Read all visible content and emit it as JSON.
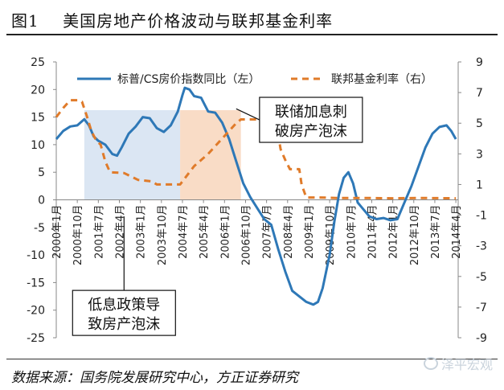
{
  "header": {
    "title": "图1    美国房地产价格波动与联邦基金利率"
  },
  "footer": {
    "source": "数据来源：国务院发展研究中心，方正证券研究",
    "watermark": "泽平宏观"
  },
  "colors": {
    "cs_index": "#2e78b7",
    "fed_rate": "#e07b2a",
    "shade_low_rate": "#dbe6f3",
    "shade_hike": "#f9dcc6"
  },
  "chart_data": {
    "type": "line",
    "x_tick_labels": [
      "2000年1月",
      "2000年10月",
      "2001年7月",
      "2002年4月",
      "2003年1月",
      "2003年10月",
      "2004年7月",
      "2005年4月",
      "2006年1月",
      "2006年10月",
      "2007年7月",
      "2008年4月",
      "2009年1月",
      "2009年10月",
      "2010年7月",
      "2011年4月",
      "2012年1月",
      "2012年10月",
      "2013年7月",
      "2014年4月"
    ],
    "y_left": {
      "ticks": [
        25,
        20,
        15,
        10,
        5,
        0,
        -5,
        -10,
        -15,
        -20,
        -25
      ],
      "lim": [
        -25,
        25
      ]
    },
    "y_right": {
      "ticks": [
        9,
        7,
        5,
        3,
        1,
        -1,
        -3,
        -5,
        -7,
        -9
      ],
      "lim": [
        -9,
        9
      ]
    },
    "shaded_regions": [
      {
        "x_start": "2001-01",
        "x_end": "2004-06",
        "color_key": "shade_low_rate"
      },
      {
        "x_start": "2004-06",
        "x_end": "2006-08",
        "color_key": "shade_hike"
      }
    ],
    "legend": {
      "placement": "top"
    },
    "annotations": [
      {
        "text": "联储加息刺\n破房产泡沫",
        "x": "2009-02",
        "y_left": 14.5,
        "arrow_to": {
          "x": "2006-06",
          "y_left": 16.5
        }
      },
      {
        "text": "低息政策导\n致房产泡沫",
        "x": "2002-06",
        "y_left": -20.5,
        "arrow_to": {
          "x": "2002-06",
          "y_left": -3
        }
      }
    ],
    "series": [
      {
        "name": "标普/CS房价指数同比（左）",
        "axis": "left",
        "style": "solid",
        "color_key": "cs_index",
        "points": [
          [
            "2000-01",
            11
          ],
          [
            "2000-04",
            12.5
          ],
          [
            "2000-07",
            13.3
          ],
          [
            "2000-10",
            13.5
          ],
          [
            "2001-01",
            14.6
          ],
          [
            "2001-03",
            13.5
          ],
          [
            "2001-05",
            11.5
          ],
          [
            "2001-07",
            10.7
          ],
          [
            "2001-10",
            10
          ],
          [
            "2002-01",
            8.3
          ],
          [
            "2002-03",
            8.0
          ],
          [
            "2002-05",
            9.5
          ],
          [
            "2002-08",
            12
          ],
          [
            "2002-11",
            13.3
          ],
          [
            "2003-02",
            15
          ],
          [
            "2003-05",
            14.8
          ],
          [
            "2003-08",
            13
          ],
          [
            "2003-11",
            12.3
          ],
          [
            "2004-02",
            13.5
          ],
          [
            "2004-05",
            16
          ],
          [
            "2004-07",
            19
          ],
          [
            "2004-08",
            20.3
          ],
          [
            "2004-10",
            20
          ],
          [
            "2004-12",
            18.8
          ],
          [
            "2005-03",
            18.5
          ],
          [
            "2005-06",
            16
          ],
          [
            "2005-09",
            15.8
          ],
          [
            "2005-12",
            14
          ],
          [
            "2006-03",
            11
          ],
          [
            "2006-06",
            7
          ],
          [
            "2006-09",
            3
          ],
          [
            "2006-12",
            0.5
          ],
          [
            "2007-03",
            -1.5
          ],
          [
            "2007-06",
            -3.5
          ],
          [
            "2007-09",
            -4.5
          ],
          [
            "2007-12",
            -9
          ],
          [
            "2008-03",
            -13
          ],
          [
            "2008-06",
            -16.5
          ],
          [
            "2008-09",
            -17.5
          ],
          [
            "2008-12",
            -18.5
          ],
          [
            "2009-03",
            -19
          ],
          [
            "2009-05",
            -18.5
          ],
          [
            "2009-07",
            -16
          ],
          [
            "2009-10",
            -10
          ],
          [
            "2009-12",
            -4
          ],
          [
            "2010-02",
            1
          ],
          [
            "2010-04",
            4
          ],
          [
            "2010-06",
            5
          ],
          [
            "2010-08",
            3
          ],
          [
            "2010-10",
            -0.5
          ],
          [
            "2010-12",
            -1.5
          ],
          [
            "2011-03",
            -3
          ],
          [
            "2011-06",
            -3.5
          ],
          [
            "2011-09",
            -3.3
          ],
          [
            "2011-12",
            -3.7
          ],
          [
            "2012-03",
            -3.5
          ],
          [
            "2012-06",
            -0.5
          ],
          [
            "2012-09",
            2.5
          ],
          [
            "2012-12",
            6
          ],
          [
            "2013-03",
            9.5
          ],
          [
            "2013-06",
            12
          ],
          [
            "2013-09",
            13.2
          ],
          [
            "2013-12",
            13.5
          ],
          [
            "2014-02",
            12.5
          ],
          [
            "2014-04",
            11
          ]
        ]
      },
      {
        "name": "联邦基金利率（右）",
        "axis": "right",
        "style": "dashed",
        "color_key": "fed_rate",
        "points": [
          [
            "2000-01",
            5.4
          ],
          [
            "2000-04",
            6
          ],
          [
            "2000-07",
            6.5
          ],
          [
            "2000-10",
            6.5
          ],
          [
            "2000-12",
            6.4
          ],
          [
            "2001-02",
            5.5
          ],
          [
            "2001-04",
            4.5
          ],
          [
            "2001-06",
            3.9
          ],
          [
            "2001-08",
            3.6
          ],
          [
            "2001-10",
            2.5
          ],
          [
            "2001-12",
            1.8
          ],
          [
            "2002-06",
            1.75
          ],
          [
            "2002-12",
            1.3
          ],
          [
            "2003-06",
            1.2
          ],
          [
            "2003-08",
            1.0
          ],
          [
            "2004-03",
            1.0
          ],
          [
            "2004-06",
            1.0
          ],
          [
            "2004-08",
            1.4
          ],
          [
            "2004-12",
            2.2
          ],
          [
            "2005-06",
            3.0
          ],
          [
            "2005-12",
            4.0
          ],
          [
            "2006-03",
            4.5
          ],
          [
            "2006-06",
            5.0
          ],
          [
            "2006-08",
            5.25
          ],
          [
            "2007-06",
            5.25
          ],
          [
            "2007-08",
            5.0
          ],
          [
            "2007-10",
            4.6
          ],
          [
            "2007-12",
            4.2
          ],
          [
            "2008-01",
            3.3
          ],
          [
            "2008-03",
            2.6
          ],
          [
            "2008-05",
            2.0
          ],
          [
            "2008-09",
            2.0
          ],
          [
            "2008-10",
            1.0
          ],
          [
            "2008-12",
            0.15
          ],
          [
            "2009-06",
            0.15
          ],
          [
            "2010-01",
            0.12
          ],
          [
            "2011-01",
            0.12
          ],
          [
            "2012-01",
            0.1
          ],
          [
            "2013-01",
            0.12
          ],
          [
            "2014-04",
            0.1
          ]
        ]
      }
    ]
  }
}
